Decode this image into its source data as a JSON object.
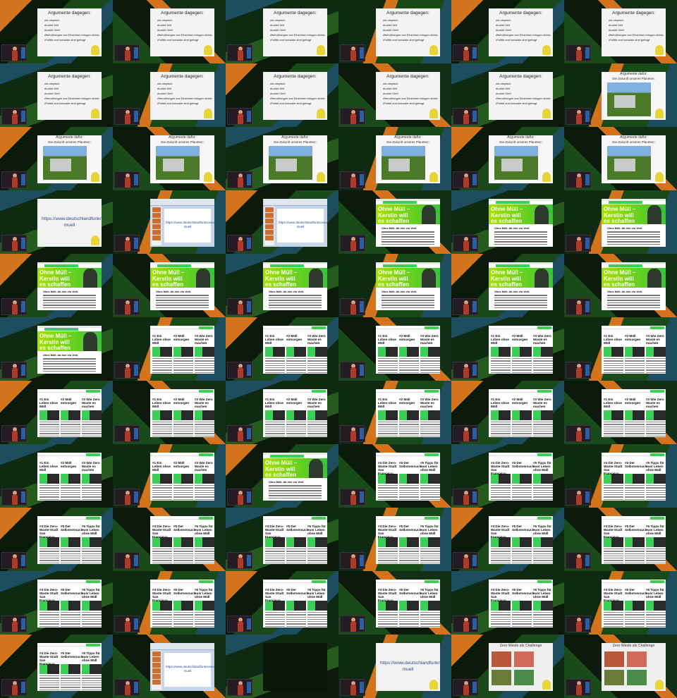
{
  "slides": {
    "list": {
      "title": "Argumente dagegen:",
      "bullets": [
        "ist utopisch",
        "kostet Zeit",
        "kostet Geld",
        "Bemühungen von Einzelnen bringen nichts",
        "Politik und Industrie sind gefragt"
      ]
    },
    "photo": {
      "title": "Argumente dafür:",
      "subtitle": "Die Zukunft unseres Planeten:"
    },
    "url": {
      "text": "https://www.deutschlandfunknova.de/ohne-muell"
    },
    "ppt": {
      "text": "https://www.deutschlandfunknova.de/ohne-muell"
    },
    "web": {
      "headline": "Ohne Müll – Kerstin will es schaffen",
      "para_title": "Ohne Müll: Ab hier ein Verb"
    },
    "articles_a": [
      "#1 Ein Leben ohne Müll",
      "#2 Müll entsorgen",
      "#3 Wie Zero Waste es machen"
    ],
    "articles_b": [
      "#4 Die Zero-Waste-Stadt San Francisco",
      "#5 Der Selbstversuch",
      "#6 Tipps für euer Leben ohne Müll"
    ],
    "collage": {
      "title": "Zero Waste als Challenge"
    }
  },
  "grid": [
    [
      "list",
      "list",
      "list",
      "list",
      "list",
      "list"
    ],
    [
      "list",
      "list",
      "list",
      "list",
      "list",
      "photo"
    ],
    [
      "photo",
      "photo",
      "photo",
      "photo",
      "photo",
      "photo"
    ],
    [
      "url",
      "ppt",
      "ppt",
      "web",
      "web",
      "web"
    ],
    [
      "web",
      "web",
      "web",
      "web",
      "web",
      "web"
    ],
    [
      "web",
      "art_a",
      "art_a",
      "art_a",
      "art_a",
      "art_a"
    ],
    [
      "art_a",
      "art_a",
      "art_a",
      "art_a",
      "art_a",
      "art_a"
    ],
    [
      "art_a",
      "art_a",
      "web",
      "art_b",
      "art_b",
      "art_b"
    ],
    [
      "art_b",
      "art_b",
      "art_b",
      "art_b",
      "art_b",
      "art_b"
    ],
    [
      "art_b",
      "art_b",
      "art_b",
      "art_b",
      "art_b",
      "art_b"
    ],
    [
      "art_b",
      "ppt",
      "blank",
      "url",
      "collage",
      "collage"
    ]
  ],
  "colors": {
    "green": "#3ccf55",
    "orange": "#d4731e",
    "dark": "#0b1a0b",
    "teal": "#1e4e5e"
  }
}
